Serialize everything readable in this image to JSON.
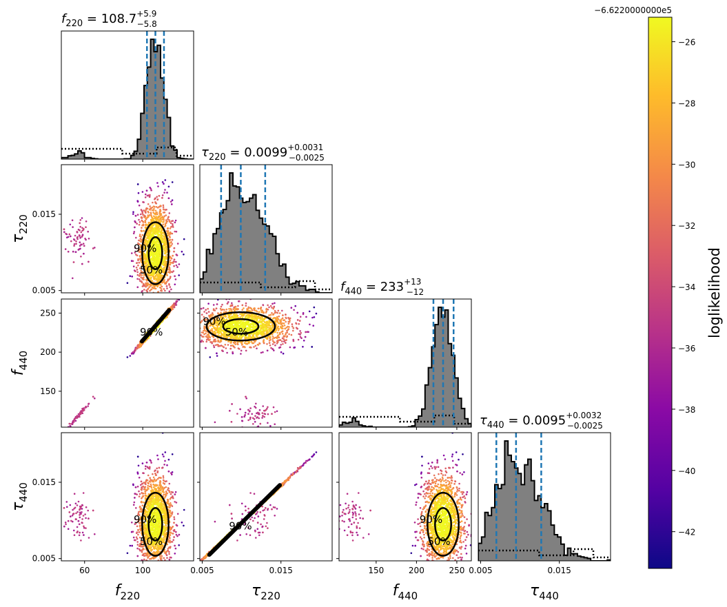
{
  "chart_data": {
    "type": "scatter",
    "kind": "corner-plot",
    "parameters": [
      {
        "id": "f220",
        "name": "f",
        "sub": "220",
        "label": "f220",
        "range": [
          44,
          135
        ],
        "ticks": [
          60,
          100
        ],
        "ticks_label": [
          "60",
          "100"
        ],
        "median": 108.7,
        "plus": "+5.9",
        "minus": "−5.8",
        "median_label": "108.7",
        "lo": 102.9,
        "hi": 114.6
      },
      {
        "id": "tau220",
        "name": "τ",
        "sub": "220",
        "label": "τ220",
        "range": [
          0.0047,
          0.0215
        ],
        "ticks": [
          0.005,
          0.015
        ],
        "ticks_label": [
          "0.005",
          "0.015"
        ],
        "median": 0.0099,
        "plus": "+0.0031",
        "minus": "−0.0025",
        "median_label": "0.0099",
        "lo": 0.0074,
        "hi": 0.013
      },
      {
        "id": "f440",
        "name": "f",
        "sub": "440",
        "label": "f440",
        "range": [
          104,
          268
        ],
        "ticks": [
          150,
          200,
          250
        ],
        "ticks_label": [
          "150",
          "200",
          "250"
        ],
        "median": 233,
        "plus": "+13",
        "minus": "−12",
        "median_label": "233",
        "lo": 221,
        "hi": 246
      },
      {
        "id": "tau440",
        "name": "τ",
        "sub": "440",
        "label": "τ440",
        "range": [
          0.0047,
          0.0215
        ],
        "ticks": [
          0.005,
          0.015
        ],
        "ticks_label": [
          "0.005",
          "0.015"
        ],
        "median": 0.0095,
        "plus": "+0.0032",
        "minus": "−0.0025",
        "median_label": "0.0095",
        "lo": 0.007,
        "hi": 0.0127
      }
    ],
    "colorbar": {
      "label": "loglikelihood",
      "offset_label": "−6.6220000000e5",
      "range": [
        -43.2,
        -25.2
      ],
      "ticks": [
        -42,
        -40,
        -38,
        -36,
        -34,
        -32,
        -30,
        -28,
        -26
      ],
      "ticks_label": [
        "−42",
        "−40",
        "−38",
        "−36",
        "−34",
        "−32",
        "−30",
        "−28",
        "−26"
      ],
      "colormap": "plasma"
    },
    "contour_levels": [
      "50%",
      "90%"
    ],
    "quantile_lines": "dashed, color #1f77b4",
    "prior": "dotted line"
  },
  "colors": {
    "quantile": "#1f77b4",
    "hist_fill": "#808080",
    "plasma": [
      "#0d0887",
      "#5302a3",
      "#8b0aa5",
      "#b83289",
      "#db5c68",
      "#f48849",
      "#febc2a",
      "#f0f921"
    ]
  }
}
